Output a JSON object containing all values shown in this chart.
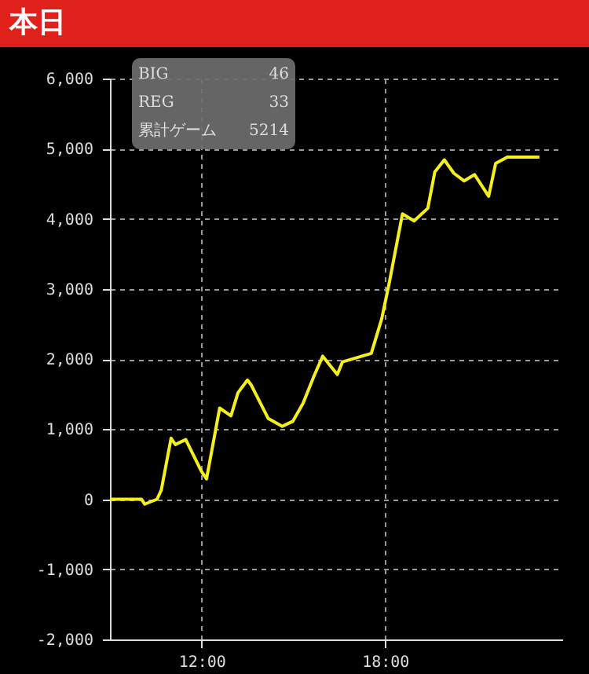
{
  "chart_data": {
    "type": "line",
    "title": "本日",
    "annotations": [
      "BIG",
      "46",
      "REG",
      "33",
      "累計ゲーム",
      "5214"
    ],
    "x": [
      9.0,
      10.03,
      10.14,
      10.54,
      10.68,
      11.0,
      11.14,
      11.48,
      11.99,
      12.16,
      12.59,
      12.96,
      13.19,
      13.5,
      13.62,
      14.18,
      14.64,
      14.98,
      15.32,
      15.67,
      15.96,
      16.44,
      16.61,
      17.55,
      17.89,
      18.14,
      18.57,
      18.95,
      19.4,
      19.63,
      19.94,
      20.25,
      20.59,
      20.93,
      21.39,
      21.62,
      22.0,
      23.05
    ],
    "series": [
      {
        "color": "#f5f019",
        "values": [
          0,
          0,
          -70,
          0,
          130,
          870,
          780,
          850,
          400,
          290,
          1300,
          1190,
          1520,
          1700,
          1630,
          1150,
          1040,
          1110,
          1370,
          1750,
          2040,
          1780,
          1960,
          2080,
          2570,
          3090,
          4070,
          3970,
          4150,
          4670,
          4840,
          4650,
          4540,
          4630,
          4320,
          4790,
          4880,
          4880
        ]
      }
    ],
    "xlim": [
      9,
      23.8
    ],
    "xticks": [
      {
        "value": 12,
        "label": "12:00"
      },
      {
        "value": 18,
        "label": "18:00"
      }
    ],
    "ylim": [
      -2000,
      6000
    ],
    "yticks": [
      {
        "value": -2000,
        "label": "-2,000"
      },
      {
        "value": -1000,
        "label": "-1,000"
      },
      0,
      {
        "value": 1000,
        "label": "1,000"
      },
      {
        "value": 2000,
        "label": "2,000"
      },
      {
        "value": 3000,
        "label": "3,000"
      },
      {
        "value": 4000,
        "label": "4,000"
      },
      {
        "value": 5000,
        "label": "5,000"
      },
      {
        "value": 6000,
        "label": "6,000"
      }
    ],
    "grid": true,
    "marker": "none",
    "line_style": "solid"
  }
}
